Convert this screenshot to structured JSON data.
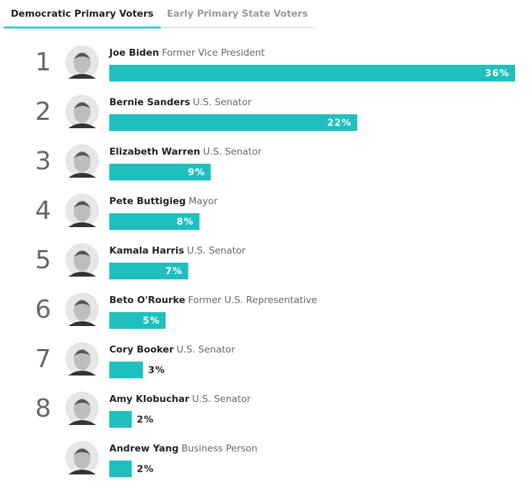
{
  "tabs": [
    "Democratic Primary Voters",
    "Early Primary State Voters"
  ],
  "chart_data": {
    "type": "bar",
    "orientation": "horizontal",
    "color": "#1fbfbf",
    "ranks": [
      1,
      2,
      3,
      4,
      5,
      6,
      7,
      8,
      null
    ],
    "categories": [
      "Joe Biden",
      "Bernie Sanders",
      "Elizabeth Warren",
      "Pete Buttigieg",
      "Kamala Harris",
      "Beto O'Rourke",
      "Cory Booker",
      "Amy Klobuchar",
      "Andrew Yang"
    ],
    "roles": [
      "Former Vice President",
      "U.S. Senator",
      "U.S. Senator",
      "Mayor",
      "U.S. Senator",
      "Former U.S. Representative",
      "U.S. Senator",
      "U.S. Senator",
      "Business Person"
    ],
    "values": [
      36,
      22,
      9,
      8,
      7,
      5,
      3,
      2,
      2
    ],
    "value_labels": [
      "36%",
      "22%",
      "9%",
      "8%",
      "7%",
      "5%",
      "3%",
      "2%",
      "2%"
    ],
    "xlim": [
      0,
      36
    ]
  }
}
